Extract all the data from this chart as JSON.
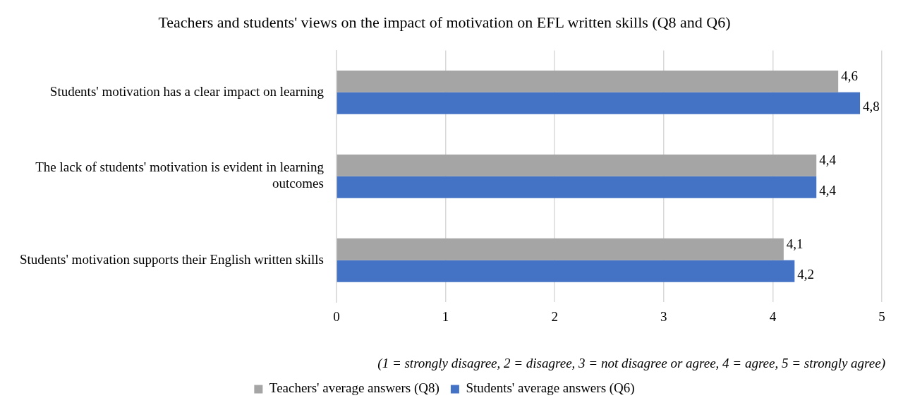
{
  "chart_data": {
    "type": "bar",
    "orientation": "horizontal",
    "title": "Teachers and students' views on the impact of motivation on EFL written skills (Q8 and Q6)",
    "categories": [
      "Students' motivation has a clear impact on learning",
      "The lack of students' motivation is evident in learning outcomes",
      "Students' motivation supports their English written skills"
    ],
    "series": [
      {
        "name": "Teachers' average answers (Q8)",
        "color": "#a5a5a5",
        "values": [
          4.6,
          4.4,
          4.1
        ],
        "value_labels": [
          "4,6",
          "4,4",
          "4,1"
        ]
      },
      {
        "name": "Students' average answers (Q6)",
        "color": "#4472c4",
        "values": [
          4.8,
          4.4,
          4.2
        ],
        "value_labels": [
          "4,8",
          "4,4",
          "4,2"
        ]
      }
    ],
    "xlim": [
      0,
      5
    ],
    "xticks": [
      0,
      1,
      2,
      3,
      4,
      5
    ],
    "grid": "x",
    "legend": "bottom",
    "annotations": [
      "(1 = strongly disagree, 2 = disagree, 3 = not disagree or agree, 4 = agree, 5 = strongly agree)"
    ]
  }
}
